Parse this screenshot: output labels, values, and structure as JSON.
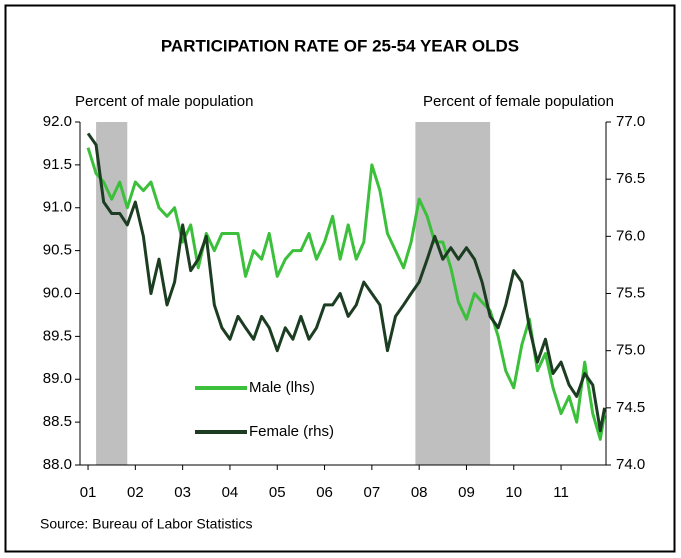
{
  "chart_data": {
    "type": "line",
    "title": "PARTICIPATION RATE OF 25-54 YEAR OLDS",
    "ylabel": "Percent of male population",
    "y2label": "Percent of female population",
    "source": "Source: Bureau of Labor Statistics",
    "x": [
      2001.0,
      2001.17,
      2001.33,
      2001.5,
      2001.67,
      2001.83,
      2002.0,
      2002.17,
      2002.33,
      2002.5,
      2002.67,
      2002.83,
      2003.0,
      2003.17,
      2003.33,
      2003.5,
      2003.67,
      2003.83,
      2004.0,
      2004.17,
      2004.33,
      2004.5,
      2004.67,
      2004.83,
      2005.0,
      2005.17,
      2005.33,
      2005.5,
      2005.67,
      2005.83,
      2006.0,
      2006.17,
      2006.33,
      2006.5,
      2006.67,
      2006.83,
      2007.0,
      2007.17,
      2007.33,
      2007.5,
      2007.67,
      2007.83,
      2008.0,
      2008.17,
      2008.33,
      2008.5,
      2008.67,
      2008.83,
      2009.0,
      2009.17,
      2009.33,
      2009.5,
      2009.67,
      2009.83,
      2010.0,
      2010.17,
      2010.33,
      2010.5,
      2010.67,
      2010.83,
      2011.0,
      2011.17,
      2011.33,
      2011.5,
      2011.67,
      2011.83,
      2011.92
    ],
    "series": [
      {
        "name": "Male (lhs)",
        "color": "#3cc03c",
        "axis": "y",
        "values": [
          91.7,
          91.4,
          91.3,
          91.1,
          91.3,
          91.0,
          91.3,
          91.2,
          91.3,
          91.0,
          90.9,
          91.0,
          90.6,
          90.8,
          90.3,
          90.7,
          90.5,
          90.7,
          90.7,
          90.7,
          90.2,
          90.5,
          90.4,
          90.7,
          90.2,
          90.4,
          90.5,
          90.5,
          90.7,
          90.4,
          90.6,
          90.9,
          90.4,
          90.8,
          90.4,
          90.6,
          91.5,
          91.2,
          90.7,
          90.5,
          90.3,
          90.6,
          91.1,
          90.9,
          90.6,
          90.6,
          90.3,
          89.9,
          89.7,
          90.0,
          89.9,
          89.8,
          89.5,
          89.1,
          88.9,
          89.4,
          89.7,
          89.1,
          89.3,
          88.9,
          88.6,
          88.8,
          88.5,
          89.2,
          88.6,
          88.3,
          88.6
        ]
      },
      {
        "name": "Female (rhs)",
        "color": "#1c3d22",
        "axis": "y2",
        "values": [
          76.9,
          76.8,
          76.3,
          76.2,
          76.2,
          76.1,
          76.3,
          76.0,
          75.5,
          75.8,
          75.4,
          75.6,
          76.1,
          75.7,
          75.8,
          76.0,
          75.4,
          75.2,
          75.1,
          75.3,
          75.2,
          75.1,
          75.3,
          75.2,
          75.0,
          75.2,
          75.1,
          75.3,
          75.1,
          75.2,
          75.4,
          75.4,
          75.5,
          75.3,
          75.4,
          75.6,
          75.5,
          75.4,
          75.0,
          75.3,
          75.4,
          75.5,
          75.6,
          75.8,
          76.0,
          75.8,
          75.9,
          75.8,
          75.9,
          75.8,
          75.6,
          75.3,
          75.2,
          75.4,
          75.7,
          75.6,
          75.2,
          74.9,
          75.1,
          74.8,
          74.9,
          74.7,
          74.6,
          74.8,
          74.7,
          74.3,
          74.5
        ]
      }
    ],
    "shaded_periods": [
      [
        2001.17,
        2001.83
      ],
      [
        2007.92,
        2009.5
      ]
    ],
    "shade_color": "#bfbfbf",
    "xlim": [
      2000.83,
      2011.95
    ],
    "xticks": [
      {
        "value": 2001,
        "label": "01"
      },
      {
        "value": 2002,
        "label": "02"
      },
      {
        "value": 2003,
        "label": "03"
      },
      {
        "value": 2004,
        "label": "04"
      },
      {
        "value": 2005,
        "label": "05"
      },
      {
        "value": 2006,
        "label": "06"
      },
      {
        "value": 2007,
        "label": "07"
      },
      {
        "value": 2008,
        "label": "08"
      },
      {
        "value": 2009,
        "label": "09"
      },
      {
        "value": 2010,
        "label": "10"
      },
      {
        "value": 2011,
        "label": "11"
      }
    ],
    "ylim": [
      88,
      92
    ],
    "yticks": [
      {
        "value": 88,
        "label": "88.0"
      },
      {
        "value": 88.5,
        "label": "88.5"
      },
      {
        "value": 89,
        "label": "89.0"
      },
      {
        "value": 89.5,
        "label": "89.5"
      },
      {
        "value": 90,
        "label": "90.0"
      },
      {
        "value": 90.5,
        "label": "90.5"
      },
      {
        "value": 91,
        "label": "91.0"
      },
      {
        "value": 91.5,
        "label": "91.5"
      },
      {
        "value": 92,
        "label": "92.0"
      }
    ],
    "y2lim": [
      74,
      77
    ],
    "y2ticks": [
      {
        "value": 74,
        "label": "74.0"
      },
      {
        "value": 74.5,
        "label": "74.5"
      },
      {
        "value": 75,
        "label": "75.0"
      },
      {
        "value": 75.5,
        "label": "75.5"
      },
      {
        "value": 76,
        "label": "76.0"
      },
      {
        "value": 76.5,
        "label": "76.5"
      },
      {
        "value": 77,
        "label": "77.0"
      }
    ],
    "grid": false,
    "legend": "lower-left"
  }
}
